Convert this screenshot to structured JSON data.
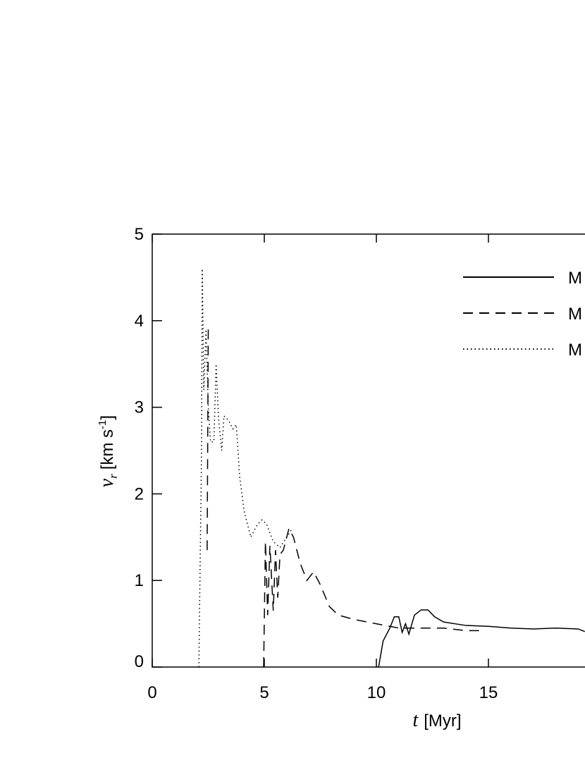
{
  "chart_data": {
    "type": "line",
    "x_label": {
      "var": "t",
      "unit": "[Myr]"
    },
    "y_label": {
      "var": "v",
      "sub": "r",
      "unit": "[km s",
      "exp": "-1",
      "close": "]"
    },
    "xlim": [
      0,
      20
    ],
    "ylim": [
      0,
      5
    ],
    "xticks": [
      0,
      5,
      10,
      15
    ],
    "yticks": [
      0,
      1,
      2,
      3,
      4,
      5
    ],
    "series": [
      {
        "name": "M",
        "color": "#000000",
        "dash": "solid",
        "x": [
          10.1,
          10.3,
          10.6,
          10.8,
          11.0,
          11.15,
          11.3,
          11.45,
          11.7,
          12.0,
          12.3,
          12.6,
          13,
          14,
          15,
          16,
          17,
          18,
          19,
          19.3
        ],
        "values": [
          0,
          0.3,
          0.45,
          0.58,
          0.58,
          0.4,
          0.5,
          0.38,
          0.6,
          0.66,
          0.66,
          0.58,
          0.52,
          0.48,
          0.47,
          0.45,
          0.44,
          0.45,
          0.44,
          0.41
        ]
      },
      {
        "name": "M",
        "color": "#000000",
        "dash": "dashed",
        "x": [
          2.45,
          2.5,
          null,
          4.97,
          5.05,
          5.15,
          5.25,
          5.4,
          5.5,
          5.6,
          5.7,
          5.85,
          6.1,
          6.3,
          6.6,
          6.9,
          7.2,
          7.5,
          7.9,
          8.3,
          9,
          10,
          11,
          12,
          13,
          14,
          14.8
        ],
        "values": [
          1.35,
          3.9,
          null,
          0,
          1.45,
          0.6,
          1.4,
          0.65,
          1.35,
          0.8,
          1.3,
          1.35,
          1.6,
          1.5,
          1.2,
          1.0,
          1.1,
          0.95,
          0.7,
          0.6,
          0.55,
          0.5,
          0.45,
          0.45,
          0.45,
          0.42,
          0.42
        ]
      },
      {
        "name": "M",
        "color": "#000000",
        "dash": "dotted",
        "x": [
          2.08,
          2.2,
          2.23,
          2.3,
          2.4,
          2.5,
          2.6,
          2.75,
          2.85,
          2.95,
          3.1,
          3.2,
          3.4,
          3.6,
          3.75,
          3.9,
          4.1,
          4.4,
          4.7,
          4.9,
          5.1,
          5.4,
          5.7,
          6.0,
          6.2
        ],
        "values": [
          0,
          2.5,
          4.6,
          3.2,
          3.9,
          3.0,
          2.6,
          2.6,
          3.5,
          2.9,
          2.5,
          2.9,
          2.85,
          2.75,
          2.8,
          2.2,
          1.8,
          1.5,
          1.65,
          1.7,
          1.65,
          1.45,
          1.38,
          1.5,
          1.58
        ]
      }
    ]
  }
}
